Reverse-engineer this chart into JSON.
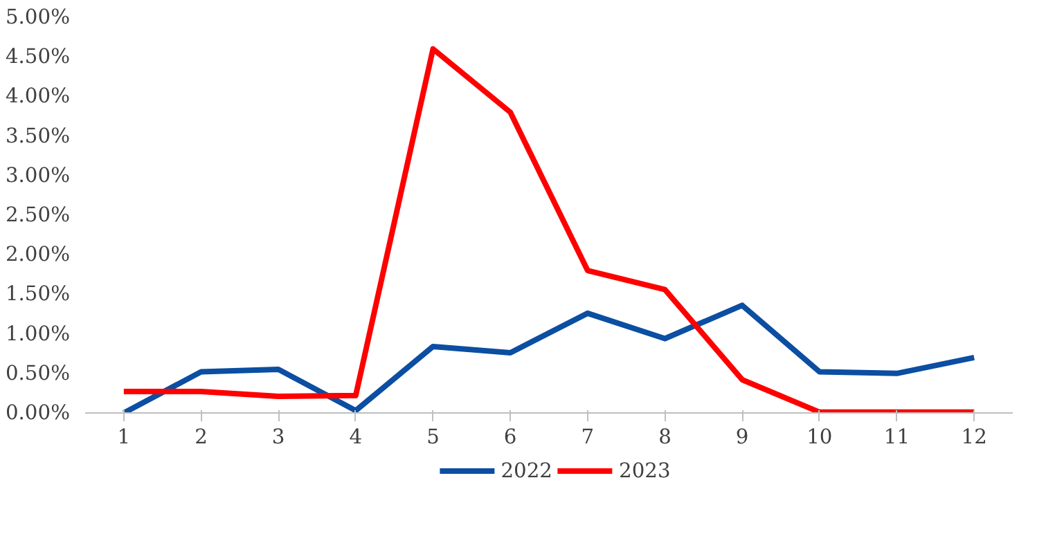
{
  "chart_data": {
    "type": "line",
    "x": [
      1,
      2,
      3,
      4,
      5,
      6,
      7,
      8,
      9,
      10,
      11,
      12
    ],
    "xlim": [
      0.5,
      12.5
    ],
    "xticks": [
      1,
      2,
      3,
      4,
      5,
      6,
      7,
      8,
      9,
      10,
      11,
      12
    ],
    "ylim": [
      0,
      5
    ],
    "yticks": [
      {
        "value": 0,
        "label": "0.00%"
      },
      {
        "value": 0.5,
        "label": "0.50%"
      },
      {
        "value": 1,
        "label": "1.00%"
      },
      {
        "value": 1.5,
        "label": "1.50%"
      },
      {
        "value": 2,
        "label": "2.00%"
      },
      {
        "value": 2.5,
        "label": "2.50%"
      },
      {
        "value": 3,
        "label": "3.00%"
      },
      {
        "value": 3.5,
        "label": "3.50%"
      },
      {
        "value": 4,
        "label": "4.00%"
      },
      {
        "value": 4.5,
        "label": "4.50%"
      },
      {
        "value": 5,
        "label": "5.00%"
      }
    ],
    "series": [
      {
        "name": "2022",
        "color": "#0b4ea2",
        "values": [
          0,
          0.52,
          0.55,
          0.03,
          0.84,
          0.76,
          1.26,
          0.94,
          1.36,
          0.52,
          0.5,
          0.7
        ]
      },
      {
        "name": "2023",
        "color": "#ff0000",
        "values": [
          0.27,
          0.27,
          0.21,
          0.22,
          4.6,
          3.8,
          1.8,
          1.56,
          0.42,
          0.01,
          0.01,
          0.01
        ]
      }
    ],
    "grid": false,
    "legend": "bottom",
    "line_style": "solid",
    "marker": "none"
  }
}
